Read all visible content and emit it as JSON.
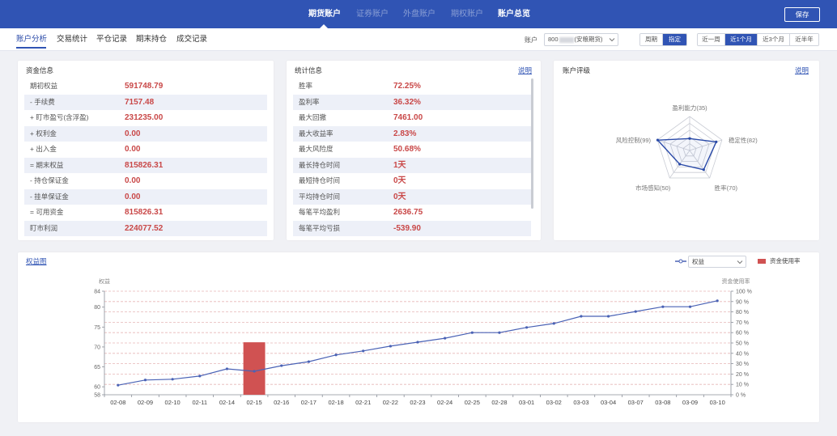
{
  "header": {
    "nav": [
      {
        "label": "期货账户",
        "state": "active"
      },
      {
        "label": "证券账户",
        "state": "disabled"
      },
      {
        "label": "外盘账户",
        "state": "disabled"
      },
      {
        "label": "期权账户",
        "state": "disabled"
      },
      {
        "label": "账户总览",
        "state": "normal"
      }
    ],
    "save_label": "保存"
  },
  "subnav": {
    "tabs": [
      {
        "label": "账户分析",
        "active": true
      },
      {
        "label": "交易统计",
        "active": false
      },
      {
        "label": "平仓记录",
        "active": false
      },
      {
        "label": "期末持仓",
        "active": false
      },
      {
        "label": "成交记录",
        "active": false
      }
    ],
    "account_label": "账户",
    "account_select": {
      "prefix": "800",
      "suffix": "(安粮期货)"
    },
    "period_modes": [
      {
        "label": "周期",
        "active": false
      },
      {
        "label": "指定",
        "active": true
      }
    ],
    "ranges": [
      {
        "label": "近一周",
        "active": false
      },
      {
        "label": "近1个月",
        "active": true
      },
      {
        "label": "近3个月",
        "active": false
      },
      {
        "label": "近半年",
        "active": false
      }
    ]
  },
  "funds": {
    "title": "资金信息",
    "rows": [
      {
        "label": "期初权益",
        "value": "591748.79"
      },
      {
        "label": "- 手续费",
        "value": "7157.48"
      },
      {
        "label": "+ 盯市盈亏(含浮盈)",
        "value": "231235.00"
      },
      {
        "label": "+ 权利金",
        "value": "0.00"
      },
      {
        "label": "+ 出入金",
        "value": "0.00"
      },
      {
        "label": "= 期末权益",
        "value": "815826.31"
      },
      {
        "label": "- 持仓保证金",
        "value": "0.00"
      },
      {
        "label": "- 挂单保证金",
        "value": "0.00"
      },
      {
        "label": "= 可用资金",
        "value": "815826.31"
      },
      {
        "label": "盯市利润",
        "value": "224077.52"
      }
    ]
  },
  "stats": {
    "title": "统计信息",
    "help_label": "说明",
    "rows": [
      {
        "label": "胜率",
        "value": "72.25%"
      },
      {
        "label": "盈利率",
        "value": "36.32%"
      },
      {
        "label": "最大回撤",
        "value": "7461.00"
      },
      {
        "label": "最大收益率",
        "value": "2.83%"
      },
      {
        "label": "最大风险度",
        "value": "50.68%"
      },
      {
        "label": "最长持仓时间",
        "value": "1天"
      },
      {
        "label": "最短持仓时间",
        "value": "0天"
      },
      {
        "label": "平均持仓时间",
        "value": "0天"
      },
      {
        "label": "每笔平均盈利",
        "value": "2636.75"
      },
      {
        "label": "每笔平均亏损",
        "value": "-539.90"
      }
    ]
  },
  "rating": {
    "title": "账户评级",
    "help_label": "说明"
  },
  "equity_panel": {
    "title": "权益图"
  },
  "colors": {
    "accent": "#3054b4",
    "value_red": "#c94848",
    "equity_line": "#4a62b5",
    "usage_bar": "#d05252",
    "grid_dash": "#e6b6b6",
    "radar_line": "#2a4aa8",
    "radar_grid": "#c9ccd4",
    "axis": "#8a8f99",
    "tick_text": "#666666"
  },
  "chart_data": [
    {
      "type": "radar",
      "labels": [
        "盈利能力(35)",
        "稳定性(82)",
        "胜率(70)",
        "市场感知(50)",
        "风险控制(99)"
      ],
      "values": [
        35,
        82,
        70,
        50,
        99
      ],
      "max": 100,
      "levels": 5
    },
    {
      "type": "line",
      "categories": [
        "02-08",
        "02-09",
        "02-10",
        "02-11",
        "02-14",
        "02-15",
        "02-16",
        "02-17",
        "02-18",
        "02-21",
        "02-22",
        "02-23",
        "02-24",
        "02-25",
        "02-28",
        "03-01",
        "03-02",
        "03-03",
        "03-04",
        "03-07",
        "03-08",
        "03-09",
        "03-10"
      ],
      "series": [
        {
          "name": "权益",
          "type": "line",
          "axis": "left",
          "values": [
            60.4,
            61.7,
            61.9,
            62.7,
            64.5,
            63.9,
            65.3,
            66.3,
            68.0,
            69.0,
            70.2,
            71.2,
            72.2,
            73.6,
            73.6,
            74.9,
            75.9,
            77.7,
            77.7,
            78.9,
            80.1,
            80.1,
            81.6
          ]
        },
        {
          "name": "资金使用率",
          "type": "bar",
          "axis": "right",
          "values": [
            0,
            0,
            0,
            0,
            0,
            50.68,
            0,
            0,
            0,
            0,
            0,
            0,
            0,
            0,
            0,
            0,
            0,
            0,
            0,
            0,
            0,
            0,
            0
          ]
        }
      ],
      "ylabel": "权益",
      "ylim": [
        58,
        84
      ],
      "yticks": [
        84,
        80,
        75,
        70,
        65,
        60,
        58
      ],
      "y2label": "资金使用率",
      "y2lim": [
        0,
        100
      ],
      "y2ticks": [
        "100 %",
        "90 %",
        "80 %",
        "70 %",
        "60 %",
        "50 %",
        "40 %",
        "30 %",
        "20 %",
        "10 %",
        "0 %"
      ],
      "grid": true,
      "legend": "top-right"
    }
  ]
}
